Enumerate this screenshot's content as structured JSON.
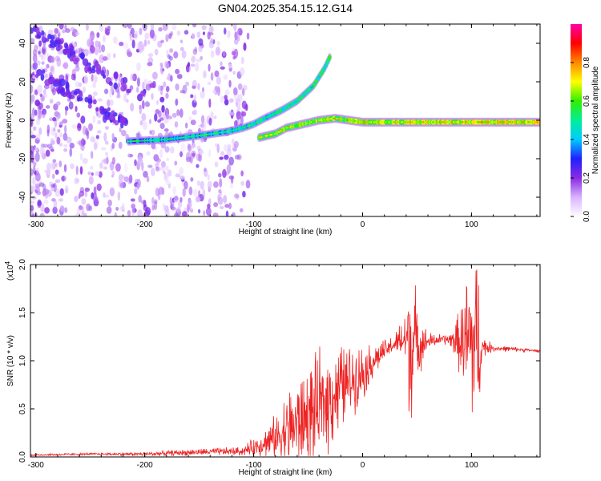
{
  "title": "GN04.2025.354.15.12.G14",
  "colors": {
    "snr_line": "#ee2222",
    "frame": "#000000"
  },
  "chart_data": [
    {
      "type": "heatmap",
      "name": "spectrogram",
      "xlabel": "Height of straight line (km)",
      "ylabel": "Frequency (Hz)",
      "xlim": [
        -305,
        163
      ],
      "ylim": [
        -50,
        50
      ],
      "x_ticks": [
        -300,
        -200,
        -100,
        0,
        100
      ],
      "x_tick_labels": [
        "-300",
        "-200",
        "-100",
        "0",
        "100"
      ],
      "y_ticks": [
        -40,
        -20,
        0,
        20,
        40
      ],
      "y_tick_labels": [
        "-40",
        "-20",
        "0",
        "20",
        "40"
      ],
      "colorbar": {
        "label": "Normalized spectral amplitude",
        "range": [
          0,
          1
        ],
        "ticks": [
          0.0,
          0.2,
          0.4,
          0.6,
          0.8
        ],
        "tick_labels": [
          "0.0",
          "0.2",
          "0.4",
          "0.6",
          "0.8"
        ],
        "colormap": [
          "#ffffff",
          "#d9b3ff",
          "#8a2be2",
          "#2020ff",
          "#00ccff",
          "#00ee99",
          "#33ee00",
          "#ffff00",
          "#ff8800",
          "#ff0000",
          "#ff00aa"
        ]
      },
      "ridge": {
        "description": "main frequency ridge",
        "points": [
          [
            -215,
            -11
          ],
          [
            -180,
            -10
          ],
          [
            -150,
            -8
          ],
          [
            -125,
            -6
          ],
          [
            -110,
            -4
          ],
          [
            -100,
            -2
          ],
          [
            -90,
            1
          ],
          [
            -75,
            5
          ],
          [
            -60,
            10
          ],
          [
            -45,
            18
          ],
          [
            -35,
            27
          ],
          [
            -30,
            33
          ]
        ]
      },
      "ridge_lower": {
        "points": [
          [
            -95,
            -9
          ],
          [
            -80,
            -7
          ],
          [
            -70,
            -4
          ],
          [
            -55,
            -2
          ],
          [
            -40,
            0
          ],
          [
            -25,
            1
          ],
          [
            0,
            -1
          ],
          [
            40,
            -1
          ],
          [
            80,
            -1
          ],
          [
            120,
            -1
          ],
          [
            163,
            -1
          ]
        ]
      },
      "diagonal_branches": [
        {
          "points": [
            [
              -305,
              48
            ],
            [
              -280,
              40
            ],
            [
              -255,
              30
            ],
            [
              -225,
              20
            ],
            [
              -200,
              12
            ]
          ]
        },
        {
          "points": [
            [
              -300,
              25
            ],
            [
              -270,
              15
            ],
            [
              -240,
              5
            ],
            [
              -215,
              -3
            ]
          ]
        }
      ]
    },
    {
      "type": "line",
      "name": "snr",
      "xlabel": "Height of straight line (km)",
      "ylabel": "SNR (10 * v/v)",
      "y_multiplier": "(x10",
      "y_multiplier_exp": "4",
      "xlim": [
        -305,
        163
      ],
      "ylim": [
        0,
        2.0
      ],
      "x_ticks": [
        -300,
        -200,
        -100,
        0,
        100
      ],
      "x_tick_labels": [
        "-300",
        "-200",
        "-100",
        "0",
        "100"
      ],
      "y_ticks": [
        0.0,
        0.5,
        1.0,
        1.5,
        2.0
      ],
      "y_tick_labels": [
        "0.0",
        "0.5",
        "1.0",
        "1.5",
        "2.0"
      ],
      "envelope": {
        "x": [
          -305,
          -250,
          -200,
          -150,
          -110,
          -100,
          -90,
          -80,
          -70,
          -60,
          -50,
          -40,
          -30,
          -20,
          -10,
          0,
          10,
          20,
          30,
          40,
          45,
          50,
          60,
          70,
          80,
          90,
          95,
          100,
          105,
          110,
          120,
          140,
          163
        ],
        "mean": [
          0.02,
          0.03,
          0.03,
          0.05,
          0.06,
          0.1,
          0.15,
          0.2,
          0.28,
          0.35,
          0.42,
          0.5,
          0.62,
          0.72,
          0.8,
          0.88,
          1.0,
          1.1,
          1.18,
          1.22,
          1.2,
          1.18,
          1.2,
          1.22,
          1.22,
          1.2,
          1.18,
          1.18,
          1.15,
          1.15,
          1.13,
          1.12,
          1.1
        ],
        "spread": [
          0.01,
          0.01,
          0.02,
          0.03,
          0.04,
          0.08,
          0.12,
          0.2,
          0.35,
          0.4,
          0.45,
          0.48,
          0.45,
          0.4,
          0.3,
          0.25,
          0.15,
          0.1,
          0.08,
          0.3,
          0.9,
          0.3,
          0.08,
          0.05,
          0.05,
          0.3,
          0.6,
          0.8,
          0.9,
          0.1,
          0.03,
          0.02,
          0.01
        ]
      }
    }
  ]
}
